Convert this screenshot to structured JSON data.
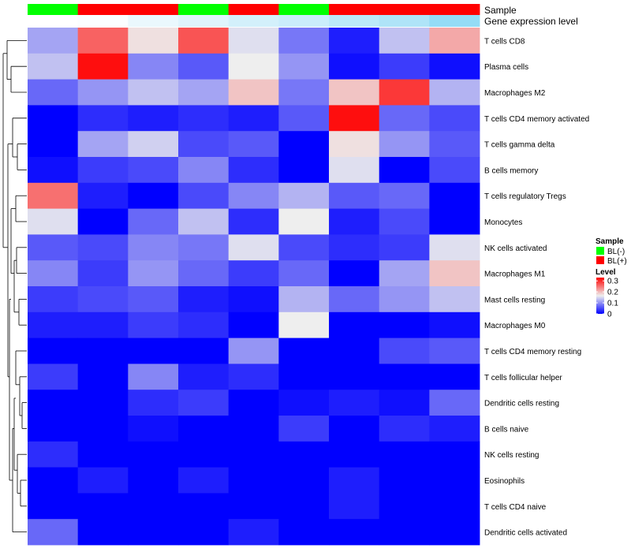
{
  "chart_data": {
    "type": "heatmap",
    "annotation_titles": {
      "sample": "Sample",
      "expression": "Gene expression level"
    },
    "columns": [
      {
        "sample": "BL(-)",
        "expression": 0.0
      },
      {
        "sample": "BL(+)",
        "expression": 0.02
      },
      {
        "sample": "BL(+)",
        "expression": 0.12
      },
      {
        "sample": "BL(-)",
        "expression": 0.18
      },
      {
        "sample": "BL(+)",
        "expression": 0.25
      },
      {
        "sample": "BL(-)",
        "expression": 0.3
      },
      {
        "sample": "BL(+)",
        "expression": 0.38
      },
      {
        "sample": "BL(+)",
        "expression": 0.45
      },
      {
        "sample": "BL(+)",
        "expression": 0.6
      }
    ],
    "rows": [
      "T cells CD8",
      "Plasma cells",
      "Macrophages M2",
      "T cells CD4 memory activated",
      "T cells gamma delta",
      "B cells memory",
      "T cells regulatory  Tregs",
      "Monocytes",
      "NK cells activated",
      "Macrophages M1",
      "Mast cells resting",
      "Macrophages M0",
      "T cells CD4 memory resting",
      "T cells follicular helper",
      "Dendritic cells resting",
      "B cells naive",
      "NK cells resting",
      "Eosinophils",
      "T cells CD4 naive",
      "Dendritic cells activated"
    ],
    "values": [
      [
        0.11,
        0.26,
        0.17,
        0.27,
        0.15,
        0.08,
        0.02,
        0.13,
        0.21
      ],
      [
        0.13,
        0.32,
        0.09,
        0.06,
        0.16,
        0.1,
        0.01,
        0.04,
        0.01
      ],
      [
        0.07,
        0.1,
        0.13,
        0.11,
        0.19,
        0.08,
        0.19,
        0.29,
        0.12
      ],
      [
        0.0,
        0.03,
        0.02,
        0.03,
        0.02,
        0.06,
        0.32,
        0.07,
        0.05
      ],
      [
        0.0,
        0.11,
        0.14,
        0.05,
        0.06,
        0.0,
        0.17,
        0.1,
        0.06
      ],
      [
        0.01,
        0.04,
        0.05,
        0.09,
        0.03,
        0.0,
        0.15,
        0.0,
        0.05
      ],
      [
        0.25,
        0.02,
        0.0,
        0.05,
        0.09,
        0.12,
        0.06,
        0.07,
        0.0
      ],
      [
        0.15,
        0.0,
        0.07,
        0.13,
        0.03,
        0.16,
        0.02,
        0.05,
        0.0
      ],
      [
        0.06,
        0.05,
        0.09,
        0.08,
        0.15,
        0.05,
        0.03,
        0.04,
        0.15
      ],
      [
        0.09,
        0.04,
        0.1,
        0.07,
        0.04,
        0.07,
        0.0,
        0.11,
        0.19
      ],
      [
        0.04,
        0.05,
        0.06,
        0.02,
        0.01,
        0.12,
        0.07,
        0.1,
        0.13
      ],
      [
        0.02,
        0.02,
        0.04,
        0.03,
        0.0,
        0.16,
        0.0,
        0.0,
        0.01
      ],
      [
        0.0,
        0.0,
        0.0,
        0.0,
        0.1,
        0.0,
        0.0,
        0.05,
        0.06
      ],
      [
        0.04,
        0.0,
        0.09,
        0.02,
        0.03,
        0.0,
        0.0,
        0.0,
        0.0
      ],
      [
        0.0,
        0.0,
        0.03,
        0.04,
        0.0,
        0.01,
        0.02,
        0.01,
        0.07
      ],
      [
        0.0,
        0.0,
        0.01,
        0.0,
        0.0,
        0.04,
        0.0,
        0.03,
        0.02
      ],
      [
        0.03,
        0.0,
        0.0,
        0.0,
        0.0,
        0.0,
        0.0,
        0.0,
        0.0
      ],
      [
        0.0,
        0.02,
        0.0,
        0.02,
        0.0,
        0.0,
        0.02,
        0.0,
        0.0
      ],
      [
        0.0,
        0.0,
        0.0,
        0.0,
        0.0,
        0.0,
        0.02,
        0.0,
        0.0
      ],
      [
        0.07,
        0.0,
        0.0,
        0.0,
        0.02,
        0.0,
        0.0,
        0.0,
        0.0
      ]
    ],
    "color_scale": {
      "min": 0,
      "mid": 0.16,
      "max": 0.33,
      "low": "#0000FF",
      "mid_color": "#EEEEEE",
      "high": "#FF0000"
    },
    "sample_colors": {
      "BL(-)": "#00FF00",
      "BL(+)": "#FF0000"
    },
    "expression_colors": {
      "low": "#FFFFFF",
      "high": "#4DC4F0"
    },
    "legend": {
      "sample_title": "Sample",
      "sample_entries": [
        {
          "label": "BL(-)",
          "color": "#00FF00"
        },
        {
          "label": "BL(+)",
          "color": "#FF0000"
        }
      ],
      "level_title": "Level",
      "level_ticks": [
        "0.3",
        "0.2",
        "0.1",
        "0"
      ],
      "level_tick_values": [
        0.3,
        0.2,
        0.1,
        0
      ]
    }
  }
}
